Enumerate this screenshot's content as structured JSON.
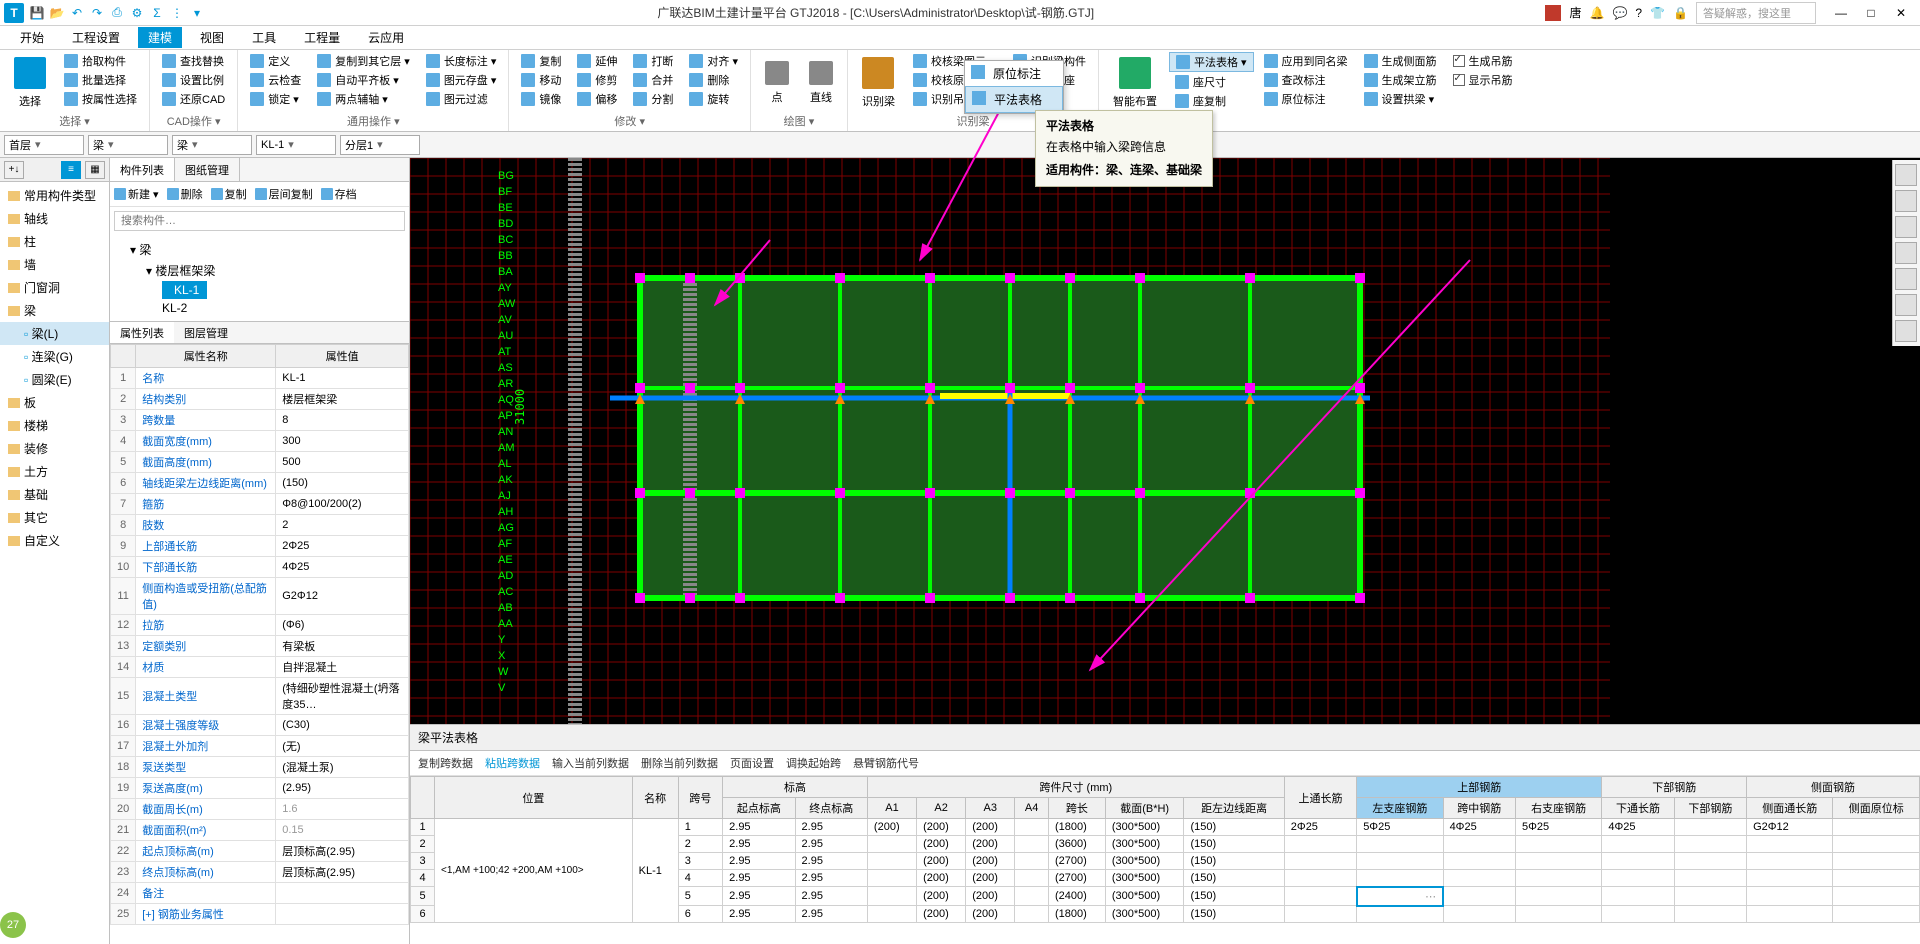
{
  "window": {
    "title": "广联达BIM土建计量平台 GTJ2018 - [C:\\Users\\Administrator\\Desktop\\试-钢筋.GTJ]",
    "user_name": "唐",
    "search_placeholder": "答疑解惑，搜这里"
  },
  "menus": [
    "开始",
    "工程设置",
    "建模",
    "视图",
    "工具",
    "工程量",
    "云应用"
  ],
  "menu_active_index": 2,
  "ribbon": {
    "select_big": "选择",
    "g1": {
      "items": [
        "拾取构件",
        "批量选择",
        "按属性选择"
      ],
      "label": "选择 ▾"
    },
    "g2": {
      "items": [
        "查找替换",
        "设置比例",
        "还原CAD"
      ],
      "label": "CAD操作 ▾"
    },
    "g3": {
      "col1": [
        "定义",
        "云检查",
        "锁定 ▾"
      ],
      "col2": [
        "复制到其它层 ▾",
        "自动平齐板 ▾",
        "两点辅轴 ▾"
      ],
      "col3": [
        "长度标注 ▾",
        "图元存盘 ▾",
        "图元过滤"
      ],
      "label": "通用操作 ▾"
    },
    "g4": {
      "col1": [
        "复制",
        "移动",
        "镜像"
      ],
      "col2": [
        "延伸",
        "修剪",
        "偏移"
      ],
      "col3": [
        "打断",
        "合并",
        "分割"
      ],
      "col4": [
        "对齐 ▾",
        "删除",
        "旋转"
      ],
      "label": "修改 ▾"
    },
    "g5": {
      "items": [
        "点",
        "直线"
      ],
      "label": "绘图 ▾"
    },
    "g6_big": "识别梁",
    "g6": {
      "col1": [
        "校核梁图元",
        "校核原位标注",
        "识别吊筋"
      ],
      "col2": [
        "识别梁构件",
        "编辑支座",
        ""
      ],
      "label": "识别梁"
    },
    "g7_big": "智能布置",
    "g7_selected": "平法表格 ▾",
    "g7": {
      "col1": [
        "应用到同名梁",
        "查改标注",
        "原位标注"
      ],
      "col2": [
        "生成侧面筋",
        "生成架立筋",
        "设置拱梁 ▾"
      ],
      "col3": [
        "生成吊筋",
        "显示吊筋"
      ],
      "extra": [
        "座尺寸",
        "座复制"
      ]
    }
  },
  "dropdown": {
    "items": [
      "原位标注",
      "平法表格"
    ],
    "highlighted": 1
  },
  "tooltip": {
    "title": "平法表格",
    "desc": "在表格中输入梁跨信息",
    "applies": "适用构件：梁、连梁、基础梁"
  },
  "contextbar": {
    "floor": "首层",
    "cat1": "梁",
    "cat2": "梁",
    "member": "KL-1",
    "layer": "分层1"
  },
  "left_categories": {
    "title": "常用构件类型",
    "items": [
      "轴线",
      "柱",
      "墙",
      "门窗洞",
      "梁",
      "板",
      "楼梯",
      "装修",
      "土方",
      "基础",
      "其它",
      "自定义"
    ],
    "expanded_index": 4,
    "beam_subitems": [
      "梁(L)",
      "连梁(G)",
      "圆梁(E)"
    ],
    "beam_selected": 0
  },
  "comp_panel": {
    "tabs": [
      "构件列表",
      "图纸管理"
    ],
    "toolbar": [
      "新建 ▾",
      "删除",
      "复制",
      "层间复制",
      "存档"
    ],
    "search_placeholder": "搜索构件…",
    "tree": {
      "root": "梁",
      "l2": "楼层框架梁",
      "l3": [
        "KL-1",
        "KL-2"
      ],
      "selected": "KL-1"
    }
  },
  "prop_panel": {
    "tabs": [
      "属性列表",
      "图层管理"
    ],
    "headers": [
      "属性名称",
      "属性值"
    ],
    "rows": [
      {
        "n": 1,
        "name": "名称",
        "val": "KL-1"
      },
      {
        "n": 2,
        "name": "结构类别",
        "val": "楼层框架梁"
      },
      {
        "n": 3,
        "name": "跨数量",
        "val": "8"
      },
      {
        "n": 4,
        "name": "截面宽度(mm)",
        "val": "300"
      },
      {
        "n": 5,
        "name": "截面高度(mm)",
        "val": "500"
      },
      {
        "n": 6,
        "name": "轴线距梁左边线距离(mm)",
        "val": "(150)"
      },
      {
        "n": 7,
        "name": "箍筋",
        "val": "Φ8@100/200(2)"
      },
      {
        "n": 8,
        "name": "肢数",
        "val": "2"
      },
      {
        "n": 9,
        "name": "上部通长筋",
        "val": "2Φ25"
      },
      {
        "n": 10,
        "name": "下部通长筋",
        "val": "4Φ25"
      },
      {
        "n": 11,
        "name": "侧面构造或受扭筋(总配筋值)",
        "val": "G2Φ12"
      },
      {
        "n": 12,
        "name": "拉筋",
        "val": "(Φ6)"
      },
      {
        "n": 13,
        "name": "定额类别",
        "val": "有梁板"
      },
      {
        "n": 14,
        "name": "材质",
        "val": "自拌混凝土"
      },
      {
        "n": 15,
        "name": "混凝土类型",
        "val": "(特细砂塑性混凝土(坍落度35…"
      },
      {
        "n": 16,
        "name": "混凝土强度等级",
        "val": "(C30)"
      },
      {
        "n": 17,
        "name": "混凝土外加剂",
        "val": "(无)"
      },
      {
        "n": 18,
        "name": "泵送类型",
        "val": "(混凝土泵)"
      },
      {
        "n": 19,
        "name": "泵送高度(m)",
        "val": "(2.95)"
      },
      {
        "n": 20,
        "name": "截面周长(m)",
        "val": "1.6",
        "gray": true
      },
      {
        "n": 21,
        "name": "截面面积(m²)",
        "val": "0.15",
        "gray": true
      },
      {
        "n": 22,
        "name": "起点顶标高(m)",
        "val": "层顶标高(2.95)"
      },
      {
        "n": 23,
        "name": "终点顶标高(m)",
        "val": "层顶标高(2.95)"
      },
      {
        "n": 24,
        "name": "备注",
        "val": ""
      },
      {
        "n": 25,
        "name": "[+] 钢筋业务属性",
        "val": ""
      }
    ]
  },
  "viewport": {
    "dimension": "31000",
    "v_labels": [
      "BG",
      "BF",
      "BE",
      "BD",
      "BC",
      "BB",
      "BA",
      "AY",
      "AW",
      "AV",
      "AU",
      "AT",
      "AS",
      "AR",
      "AQ",
      "AP",
      "AN",
      "AM",
      "AL",
      "AK",
      "AJ",
      "AH",
      "AG",
      "AF",
      "AE",
      "AD",
      "AC",
      "AB",
      "AA",
      "Y",
      "X",
      "W",
      "V"
    ],
    "h_labels": "1 2 3 4 5 6 7 8 9 10 11 12 13 14 15 16 17 18 19 20 21 22 23 24 25 26 27 28 29 30 31 32 33 34 35 36 37 38 39 40 41 42 43 44 45 46 47 48 49 50 51 52 53 54 55 56 57 58 59 60 61 62 63"
  },
  "bottom_panel": {
    "title": "梁平法表格",
    "toolbar": [
      "复制跨数据",
      "粘贴跨数据",
      "输入当前列数据",
      "删除当前列数据",
      "页面设置",
      "调换起始跨",
      "悬臂钢筋代号"
    ],
    "headers": {
      "group_top": [
        "位置",
        "名称",
        "跨号",
        "标高",
        "跨件尺寸 (mm)",
        "上通长筋",
        "上部钢筋",
        "下部钢筋",
        "侧面钢筋"
      ],
      "sub_bg": [
        "起点标高",
        "终点标高"
      ],
      "sub_size": [
        "A1",
        "A2",
        "A3",
        "A4",
        "跨长",
        "截面(B*H)",
        "距左边线距离"
      ],
      "sub_upper": [
        "左支座钢筋",
        "跨中钢筋",
        "右支座钢筋"
      ],
      "sub_lower": [
        "下通长筋",
        "下部钢筋"
      ],
      "sub_side": [
        "侧面通长筋",
        "侧面原位标"
      ]
    },
    "position_cell": "&lt;1,AM +100;42 +200,AM +100&gt;",
    "name_cell": "KL-1",
    "rows": [
      {
        "n": 1,
        "span": "1",
        "s": "2.95",
        "e": "2.95",
        "a1": "(200)",
        "a2": "(200)",
        "a3": "(200)",
        "a4": "",
        "len": "(1800)",
        "sec": "(300*500)",
        "dist": "(150)",
        "ut": "2Φ25",
        "ul": "5Φ25",
        "um": "4Φ25",
        "ur": "5Φ25",
        "lt": "4Φ25",
        "lb": "",
        "st": "G2Φ12",
        "so": ""
      },
      {
        "n": 2,
        "span": "2",
        "s": "2.95",
        "e": "2.95",
        "a1": "",
        "a2": "(200)",
        "a3": "(200)",
        "a4": "",
        "len": "(3600)",
        "sec": "(300*500)",
        "dist": "(150)",
        "ut": "",
        "ul": "",
        "um": "",
        "ur": "",
        "lt": "",
        "lb": "",
        "st": "",
        "so": ""
      },
      {
        "n": 3,
        "span": "3",
        "s": "2.95",
        "e": "2.95",
        "a1": "",
        "a2": "(200)",
        "a3": "(200)",
        "a4": "",
        "len": "(2700)",
        "sec": "(300*500)",
        "dist": "(150)",
        "ut": "",
        "ul": "",
        "um": "",
        "ur": "",
        "lt": "",
        "lb": "",
        "st": "",
        "so": ""
      },
      {
        "n": 4,
        "span": "4",
        "s": "2.95",
        "e": "2.95",
        "a1": "",
        "a2": "(200)",
        "a3": "(200)",
        "a4": "",
        "len": "(2700)",
        "sec": "(300*500)",
        "dist": "(150)",
        "ut": "",
        "ul": "",
        "um": "",
        "ur": "",
        "lt": "",
        "lb": "",
        "st": "",
        "so": ""
      },
      {
        "n": 5,
        "span": "5",
        "s": "2.95",
        "e": "2.95",
        "a1": "",
        "a2": "(200)",
        "a3": "(200)",
        "a4": "",
        "len": "(2400)",
        "sec": "(300*500)",
        "dist": "(150)",
        "ut": "",
        "ul": "",
        "um": "",
        "ur": "",
        "lt": "",
        "lb": "",
        "st": "",
        "so": ""
      },
      {
        "n": 6,
        "span": "6",
        "s": "2.95",
        "e": "2.95",
        "a1": "",
        "a2": "(200)",
        "a3": "(200)",
        "a4": "",
        "len": "(1800)",
        "sec": "(300*500)",
        "dist": "(150)",
        "ut": "",
        "ul": "",
        "um": "",
        "ur": "",
        "lt": "",
        "lb": "",
        "st": "",
        "so": ""
      }
    ]
  },
  "notif_count": "27"
}
